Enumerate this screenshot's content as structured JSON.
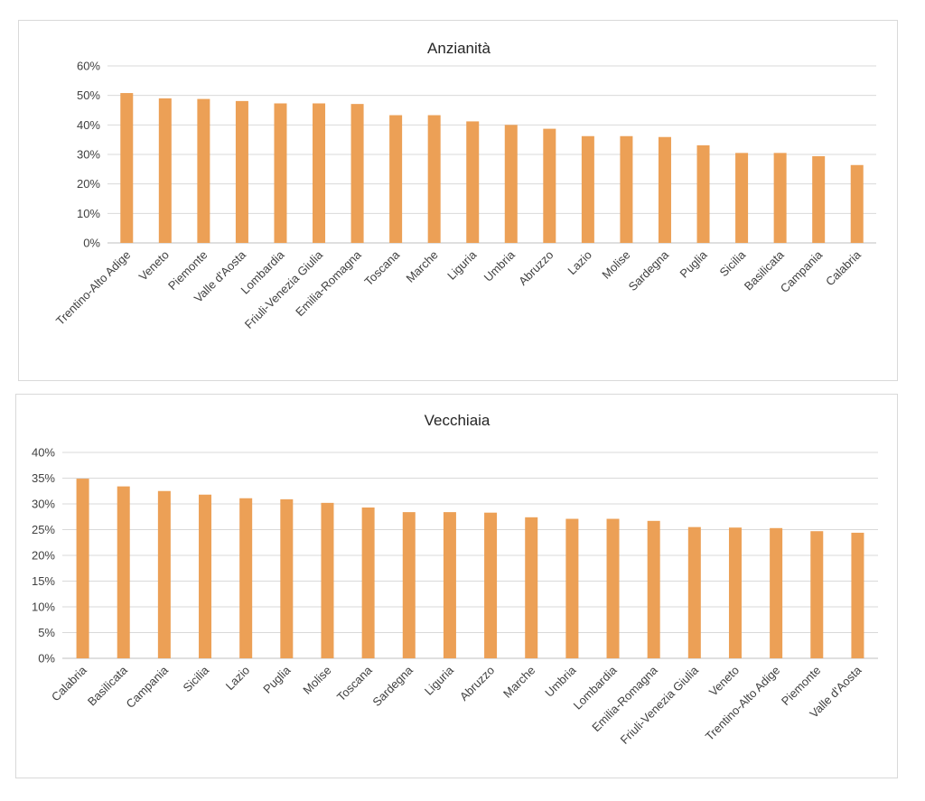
{
  "colors": {
    "bar": "#eca056",
    "grid": "#d9d9d9",
    "axis": "#bfbfbf",
    "text": "#404040",
    "title": "#262626"
  },
  "chart_data": [
    {
      "type": "bar",
      "title": "Anzianità",
      "xlabel": "",
      "ylabel": "",
      "ylim": [
        0,
        60
      ],
      "yticks": [
        "0%",
        "10%",
        "20%",
        "30%",
        "40%",
        "50%",
        "60%"
      ],
      "grid": true,
      "legend": "none",
      "categories": [
        "Trentino-Alto Adige",
        "Veneto",
        "Piemonte",
        "Valle d'Aosta",
        "Lombardia",
        "Friuli-Venezia Giulia",
        "Emilia-Romagna",
        "Toscana",
        "Marche",
        "Liguria",
        "Umbria",
        "Abruzzo",
        "Lazio",
        "Molise",
        "Sardegna",
        "Puglia",
        "Sicilia",
        "Basilicata",
        "Campania",
        "Calabria"
      ],
      "values": [
        50.8,
        49.0,
        48.8,
        48.1,
        47.3,
        47.3,
        47.1,
        43.3,
        43.3,
        41.2,
        40.0,
        38.7,
        36.2,
        36.2,
        35.9,
        33.1,
        30.5,
        30.5,
        29.4,
        26.4
      ]
    },
    {
      "type": "bar",
      "title": "Vecchiaia",
      "xlabel": "",
      "ylabel": "",
      "ylim": [
        0,
        40
      ],
      "yticks": [
        "0%",
        "5%",
        "10%",
        "15%",
        "20%",
        "25%",
        "30%",
        "35%",
        "40%"
      ],
      "grid": true,
      "legend": "none",
      "categories": [
        "Calabria",
        "Basilicata",
        "Campania",
        "Sicilia",
        "Lazio",
        "Puglia",
        "Molise",
        "Toscana",
        "Sardegna",
        "Liguria",
        "Abruzzo",
        "Marche",
        "Umbria",
        "Lombardia",
        "Emilia-Romagna",
        "Friuli-Venezia Giulia",
        "Veneto",
        "Trentino-Alto Adige",
        "Piemonte",
        "Valle d'Aosta"
      ],
      "values": [
        34.9,
        33.4,
        32.5,
        31.8,
        31.1,
        30.9,
        30.2,
        29.3,
        28.4,
        28.4,
        28.3,
        27.4,
        27.1,
        27.1,
        26.7,
        25.5,
        25.4,
        25.3,
        24.7,
        24.4
      ]
    }
  ]
}
